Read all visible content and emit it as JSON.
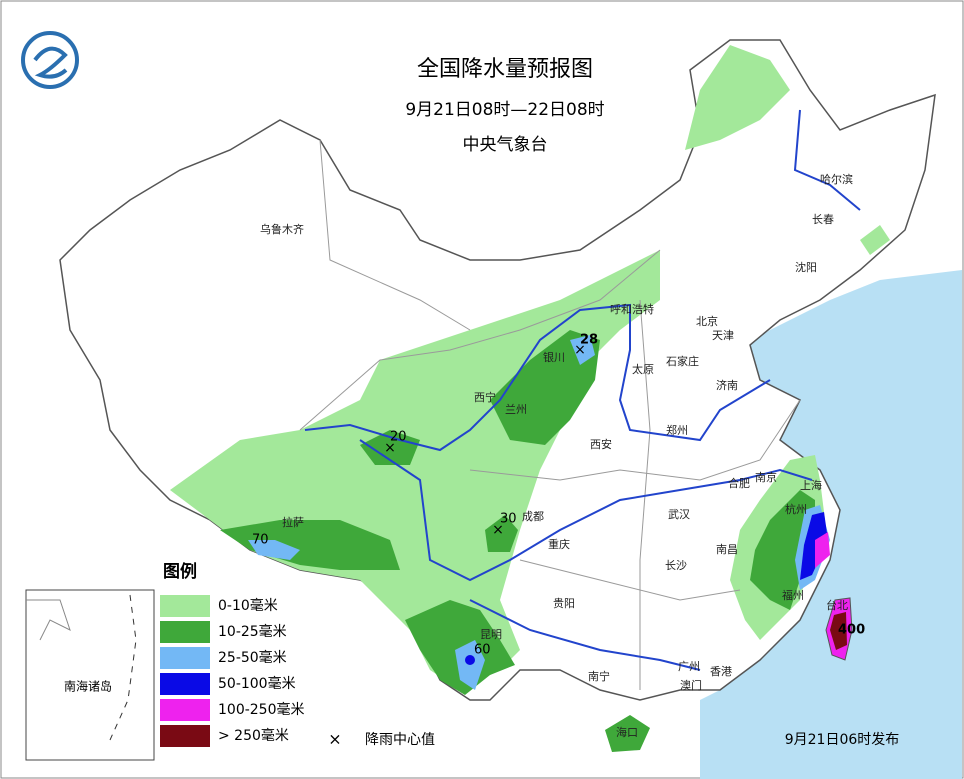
{
  "header": {
    "title": "全国降水量预报图",
    "subtitle": "9月21日08时—22日08时",
    "agency": "中央气象台"
  },
  "cities": [
    "乌鲁木齐",
    "哈尔滨",
    "长春",
    "沈阳",
    "呼和浩特",
    "北京",
    "天津",
    "银川",
    "太原",
    "石家庄",
    "济南",
    "西宁",
    "兰州",
    "郑州",
    "西安",
    "南京",
    "合肥",
    "上海",
    "拉萨",
    "成都",
    "武汉",
    "杭州",
    "重庆",
    "南昌",
    "长沙",
    "贵阳",
    "福州",
    "台北",
    "昆明",
    "南宁",
    "广州",
    "香港",
    "澳门",
    "海口"
  ],
  "rain_centers": [
    28,
    20,
    30,
    70,
    60,
    400
  ],
  "legend": {
    "title": "图例",
    "items": [
      "0-10毫米",
      "10-25毫米",
      "25-50毫米",
      "50-100毫米",
      "100-250毫米",
      "> 250毫米"
    ],
    "center_label": "降雨中心值"
  },
  "inset_label": "南海诸岛",
  "issued": "9月21日06时发布"
}
